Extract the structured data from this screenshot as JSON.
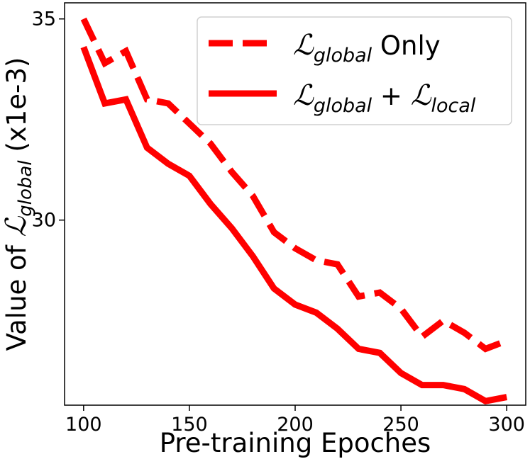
{
  "chart_data": {
    "type": "line",
    "title": "",
    "xlabel": "Pre-training Epoches",
    "ylabel": {
      "prefix": "Value of ",
      "symbol": "ℒ",
      "subscript": "global",
      "suffix": " (x1e-3)"
    },
    "xlim": [
      91,
      309
    ],
    "ylim": [
      25.4,
      35.4
    ],
    "xticks": [
      100,
      150,
      200,
      250,
      300
    ],
    "yticks": [
      30,
      35
    ],
    "grid": false,
    "legend_position": "top-right",
    "x": [
      100,
      110,
      120,
      130,
      140,
      150,
      160,
      170,
      180,
      190,
      200,
      210,
      220,
      230,
      240,
      250,
      260,
      270,
      280,
      290,
      300
    ],
    "series": [
      {
        "name": "ℒglobal Only",
        "legend": {
          "symbol": "ℒ",
          "subscript": "global",
          "suffix": " Only"
        },
        "style": "dashed",
        "color": "#ff0000",
        "values": [
          35.0,
          33.9,
          34.2,
          33.0,
          32.9,
          32.4,
          31.9,
          31.2,
          30.6,
          29.7,
          29.3,
          29.0,
          28.9,
          28.1,
          28.2,
          27.8,
          27.1,
          27.5,
          27.2,
          26.8,
          27.0
        ]
      },
      {
        "name": "ℒglobal + ℒlocal",
        "legend": {
          "symbol": "ℒ",
          "subscript": "global",
          "plus": " + ",
          "symbol2": "ℒ",
          "subscript2": "local"
        },
        "style": "solid",
        "color": "#ff0000",
        "values": [
          34.3,
          32.9,
          33.0,
          31.8,
          31.4,
          31.1,
          30.4,
          29.8,
          29.1,
          28.3,
          27.9,
          27.7,
          27.3,
          26.8,
          26.7,
          26.2,
          25.9,
          25.9,
          25.8,
          25.5,
          25.6
        ]
      }
    ]
  }
}
